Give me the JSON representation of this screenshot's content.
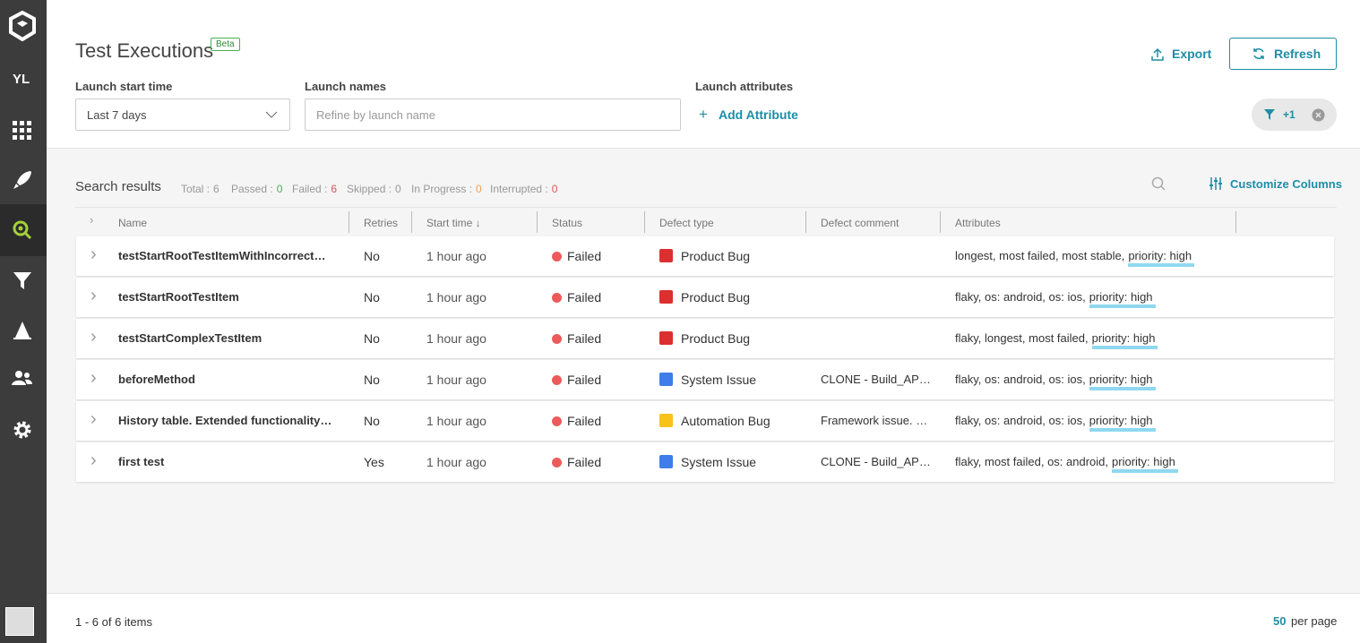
{
  "sidebar": {
    "user_initials": "YL"
  },
  "header": {
    "title": "Test Executions",
    "badge": "Beta",
    "export": "Export",
    "refresh": "Refresh"
  },
  "filters": {
    "start_time_label": "Launch start time",
    "start_time_value": "Last 7 days",
    "names_label": "Launch names",
    "names_placeholder": "Refine by launch name",
    "attributes_label": "Launch attributes",
    "add_attribute": "Add Attribute",
    "filter_count": "+1"
  },
  "results": {
    "title": "Search results",
    "customize": "Customize Columns",
    "stats": [
      {
        "label": "Total :",
        "value": 6,
        "color": "#999"
      },
      {
        "label": "Passed :",
        "value": 0,
        "color": "#5aa45a"
      },
      {
        "label": "Failed :",
        "value": 6,
        "color": "#e05353"
      },
      {
        "label": "Skipped :",
        "value": 0,
        "color": "#999"
      },
      {
        "label": "In Progress :",
        "value": 0,
        "color": "#f0a050"
      },
      {
        "label": "Interrupted :",
        "value": 0,
        "color": "#e05353"
      }
    ]
  },
  "table": {
    "columns": [
      "Name",
      "Retries",
      "Start time ↓",
      "Status",
      "Defect type",
      "Defect comment",
      "Attributes"
    ],
    "rows": [
      {
        "name": "testStartRootTestItemWithIncorrect…",
        "retries": "No",
        "start": "1 hour ago",
        "status": "Failed",
        "defect": "Product Bug",
        "defect_color": "#dc2f2f",
        "comment": "",
        "attributes": "longest, most failed, most stable,",
        "highlight": "priority: high"
      },
      {
        "name": "testStartRootTestItem",
        "retries": "No",
        "start": "1 hour ago",
        "status": "Failed",
        "defect": "Product Bug",
        "defect_color": "#dc2f2f",
        "comment": "",
        "attributes": "flaky, os: android, os: ios,",
        "highlight": "priority: high"
      },
      {
        "name": "testStartComplexTestItem",
        "retries": "No",
        "start": "1 hour ago",
        "status": "Failed",
        "defect": "Product Bug",
        "defect_color": "#dc2f2f",
        "comment": "",
        "attributes": "flaky, longest, most failed,",
        "highlight": "priority: high"
      },
      {
        "name": "beforeMethod",
        "retries": "No",
        "start": "1 hour ago",
        "status": "Failed",
        "defect": "System Issue",
        "defect_color": "#3f7ee8",
        "comment": "CLONE - Build_AP…",
        "attributes": "flaky, os: android, os: ios,",
        "highlight": "priority: high"
      },
      {
        "name": "History table. Extended functionality…",
        "retries": "No",
        "start": "1 hour ago",
        "status": "Failed",
        "defect": "Automation Bug",
        "defect_color": "#f7c21a",
        "comment": "Framework issue. …",
        "attributes": "flaky, os: android, os: ios,",
        "highlight": "priority: high"
      },
      {
        "name": "first test",
        "retries": "Yes",
        "start": "1 hour ago",
        "status": "Failed",
        "defect": "System Issue",
        "defect_color": "#3f7ee8",
        "comment": "CLONE - Build_AP…",
        "attributes": "flaky, most failed, os: android,",
        "highlight": "priority: high"
      }
    ]
  },
  "footer": {
    "range": "1 - 6 of 6 items",
    "per_page_count": 50,
    "per_page_label": "per page"
  }
}
